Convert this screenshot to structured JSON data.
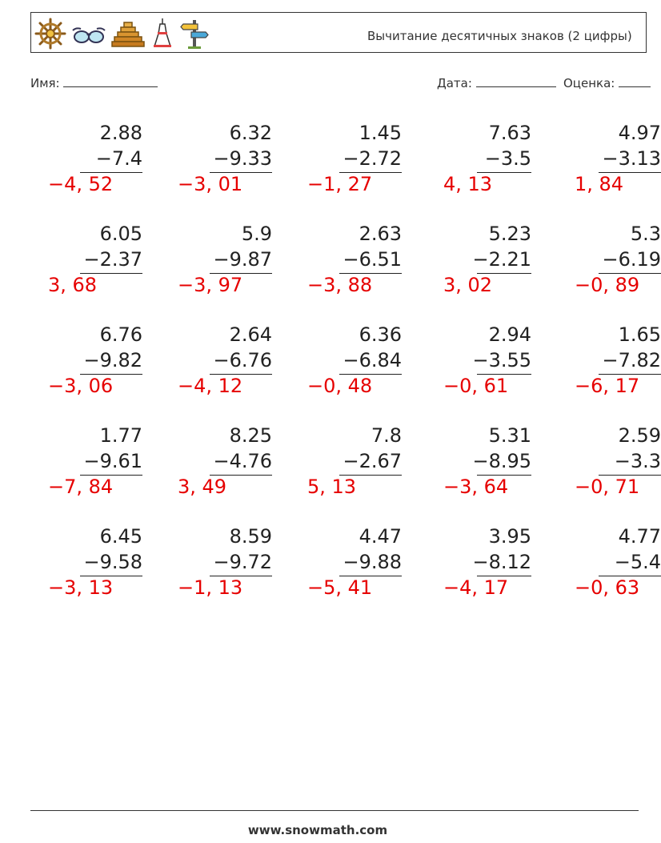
{
  "header": {
    "title": "Вычитание десятичных знаков (2 цифры)",
    "icons": [
      "ship-wheel-icon",
      "sunglasses-icon",
      "pyramid-icon",
      "tower-icon",
      "signpost-icon"
    ]
  },
  "meta": {
    "name_label": "Имя:",
    "date_label": "Дата:",
    "score_label": "Оценка:"
  },
  "problems": [
    [
      {
        "a": "2.88",
        "b": "−7.4",
        "ans": "−4, 52"
      },
      {
        "a": "6.32",
        "b": "−9.33",
        "ans": "−3, 01"
      },
      {
        "a": "1.45",
        "b": "−2.72",
        "ans": "−1, 27"
      },
      {
        "a": "7.63",
        "b": "−3.5",
        "ans": "4, 13"
      },
      {
        "a": "4.97",
        "b": "−3.13",
        "ans": "1, 84"
      }
    ],
    [
      {
        "a": "6.05",
        "b": "−2.37",
        "ans": "3, 68"
      },
      {
        "a": "5.9",
        "b": "−9.87",
        "ans": "−3, 97"
      },
      {
        "a": "2.63",
        "b": "−6.51",
        "ans": "−3, 88"
      },
      {
        "a": "5.23",
        "b": "−2.21",
        "ans": "3, 02"
      },
      {
        "a": "5.3",
        "b": "−6.19",
        "ans": "−0, 89"
      }
    ],
    [
      {
        "a": "6.76",
        "b": "−9.82",
        "ans": "−3, 06"
      },
      {
        "a": "2.64",
        "b": "−6.76",
        "ans": "−4, 12"
      },
      {
        "a": "6.36",
        "b": "−6.84",
        "ans": "−0, 48"
      },
      {
        "a": "2.94",
        "b": "−3.55",
        "ans": "−0, 61"
      },
      {
        "a": "1.65",
        "b": "−7.82",
        "ans": "−6, 17"
      }
    ],
    [
      {
        "a": "1.77",
        "b": "−9.61",
        "ans": "−7, 84"
      },
      {
        "a": "8.25",
        "b": "−4.76",
        "ans": "3, 49"
      },
      {
        "a": "7.8",
        "b": "−2.67",
        "ans": "5, 13"
      },
      {
        "a": "5.31",
        "b": "−8.95",
        "ans": "−3, 64"
      },
      {
        "a": "2.59",
        "b": "−3.3",
        "ans": "−0, 71"
      }
    ],
    [
      {
        "a": "6.45",
        "b": "−9.58",
        "ans": "−3, 13"
      },
      {
        "a": "8.59",
        "b": "−9.72",
        "ans": "−1, 13"
      },
      {
        "a": "4.47",
        "b": "−9.88",
        "ans": "−5, 41"
      },
      {
        "a": "3.95",
        "b": "−8.12",
        "ans": "−4, 17"
      },
      {
        "a": "4.77",
        "b": "−5.4",
        "ans": "−0, 63"
      }
    ]
  ],
  "footer": {
    "site": "www.snowmath.com"
  }
}
